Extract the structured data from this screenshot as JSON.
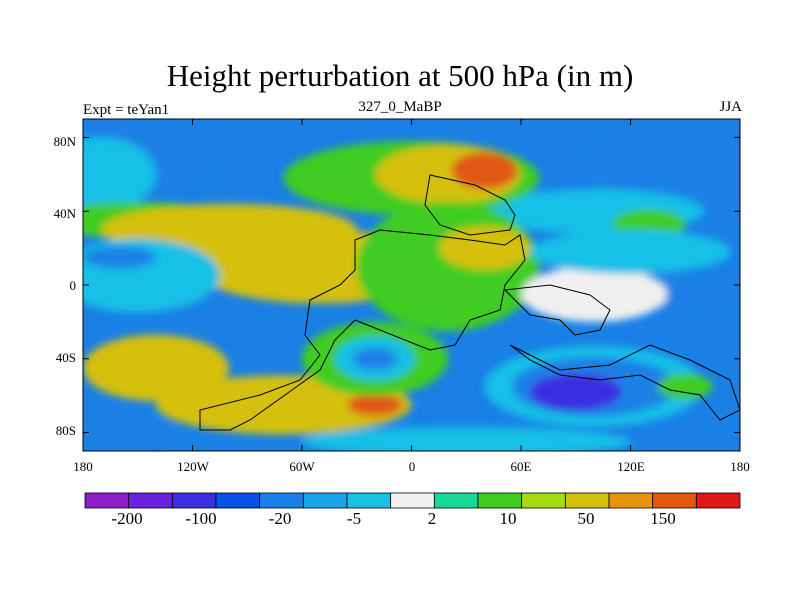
{
  "figure": {
    "title": "Height perturbation at 500 hPa (in m)",
    "left_string": "Expt = teYan1",
    "center_string": "327_0_MaBP",
    "right_string": "JJA"
  },
  "axes": {
    "lon_range": [
      -180,
      180
    ],
    "lat_range": [
      -90,
      90
    ],
    "x_ticks": [
      "180",
      "120W",
      "60W",
      "0",
      "60E",
      "120E",
      "180"
    ],
    "y_ticks": [
      "80N",
      "40N",
      "0",
      "40S",
      "80S"
    ]
  },
  "colorbar": {
    "colors": [
      "#8c1ec8",
      "#6a22dc",
      "#3b2fe0",
      "#0a52e6",
      "#1a80e6",
      "#18a4e6",
      "#18c0e6",
      "#f0f0f0",
      "#18d898",
      "#40cc20",
      "#a4dc10",
      "#d4c00a",
      "#e8940a",
      "#e05812",
      "#e01818"
    ],
    "labels": [
      "-200",
      "-100",
      "-20",
      "-5",
      "2",
      "10",
      "50",
      "150"
    ]
  },
  "map": {
    "blobs": [
      {
        "value": -20,
        "lon": -150,
        "lat": 72,
        "rx": 45,
        "ry": 22
      },
      {
        "value": -5,
        "lon": -170,
        "lat": 60,
        "rx": 30,
        "ry": 20
      },
      {
        "value": -20,
        "lon": 150,
        "lat": 62,
        "rx": 55,
        "ry": 25
      },
      {
        "value": -5,
        "lon": 100,
        "lat": 40,
        "rx": 60,
        "ry": 12
      },
      {
        "value": 10,
        "lon": 0,
        "lat": 58,
        "rx": 70,
        "ry": 20
      },
      {
        "value": 50,
        "lon": 20,
        "lat": 60,
        "rx": 40,
        "ry": 16
      },
      {
        "value": 150,
        "lon": 40,
        "lat": 62,
        "rx": 18,
        "ry": 10
      },
      {
        "value": 10,
        "lon": -150,
        "lat": 35,
        "rx": 50,
        "ry": 10
      },
      {
        "value": 50,
        "lon": -100,
        "lat": 30,
        "rx": 70,
        "ry": 14
      },
      {
        "value": 50,
        "lon": -50,
        "lat": 10,
        "rx": 70,
        "ry": 20
      },
      {
        "value": 10,
        "lon": 20,
        "lat": 10,
        "rx": 50,
        "ry": 35
      },
      {
        "value": 50,
        "lon": 40,
        "lat": 20,
        "rx": 25,
        "ry": 12
      },
      {
        "value": -5,
        "lon": -150,
        "lat": 5,
        "rx": 45,
        "ry": 20
      },
      {
        "value": -20,
        "lon": -160,
        "lat": 15,
        "rx": 20,
        "ry": 6
      },
      {
        "value": -20,
        "lon": 150,
        "lat": -5,
        "rx": 30,
        "ry": 8
      },
      {
        "value": 2,
        "lon": 100,
        "lat": -5,
        "rx": 40,
        "ry": 15
      },
      {
        "value": 10,
        "lon": 130,
        "lat": 33,
        "rx": 20,
        "ry": 8
      },
      {
        "value": -5,
        "lon": 120,
        "lat": 18,
        "rx": 55,
        "ry": 12
      },
      {
        "value": 50,
        "lon": -140,
        "lat": -45,
        "rx": 40,
        "ry": 18
      },
      {
        "value": 50,
        "lon": -70,
        "lat": -65,
        "rx": 70,
        "ry": 16
      },
      {
        "value": 150,
        "lon": -20,
        "lat": -65,
        "rx": 15,
        "ry": 6
      },
      {
        "value": 10,
        "lon": -20,
        "lat": -40,
        "rx": 40,
        "ry": 20
      },
      {
        "value": -5,
        "lon": -20,
        "lat": -40,
        "rx": 22,
        "ry": 12
      },
      {
        "value": -20,
        "lon": -20,
        "lat": -40,
        "rx": 12,
        "ry": 6
      },
      {
        "value": -5,
        "lon": 100,
        "lat": -55,
        "rx": 60,
        "ry": 22
      },
      {
        "value": -20,
        "lon": 100,
        "lat": -55,
        "rx": 45,
        "ry": 16
      },
      {
        "value": -100,
        "lon": 90,
        "lat": -58,
        "rx": 25,
        "ry": 10
      },
      {
        "value": 10,
        "lon": 150,
        "lat": -55,
        "rx": 15,
        "ry": 7
      },
      {
        "value": -20,
        "lon": -160,
        "lat": -80,
        "rx": 30,
        "ry": 8
      },
      {
        "value": -5,
        "lon": 30,
        "lat": -85,
        "rx": 90,
        "ry": 8
      }
    ]
  }
}
